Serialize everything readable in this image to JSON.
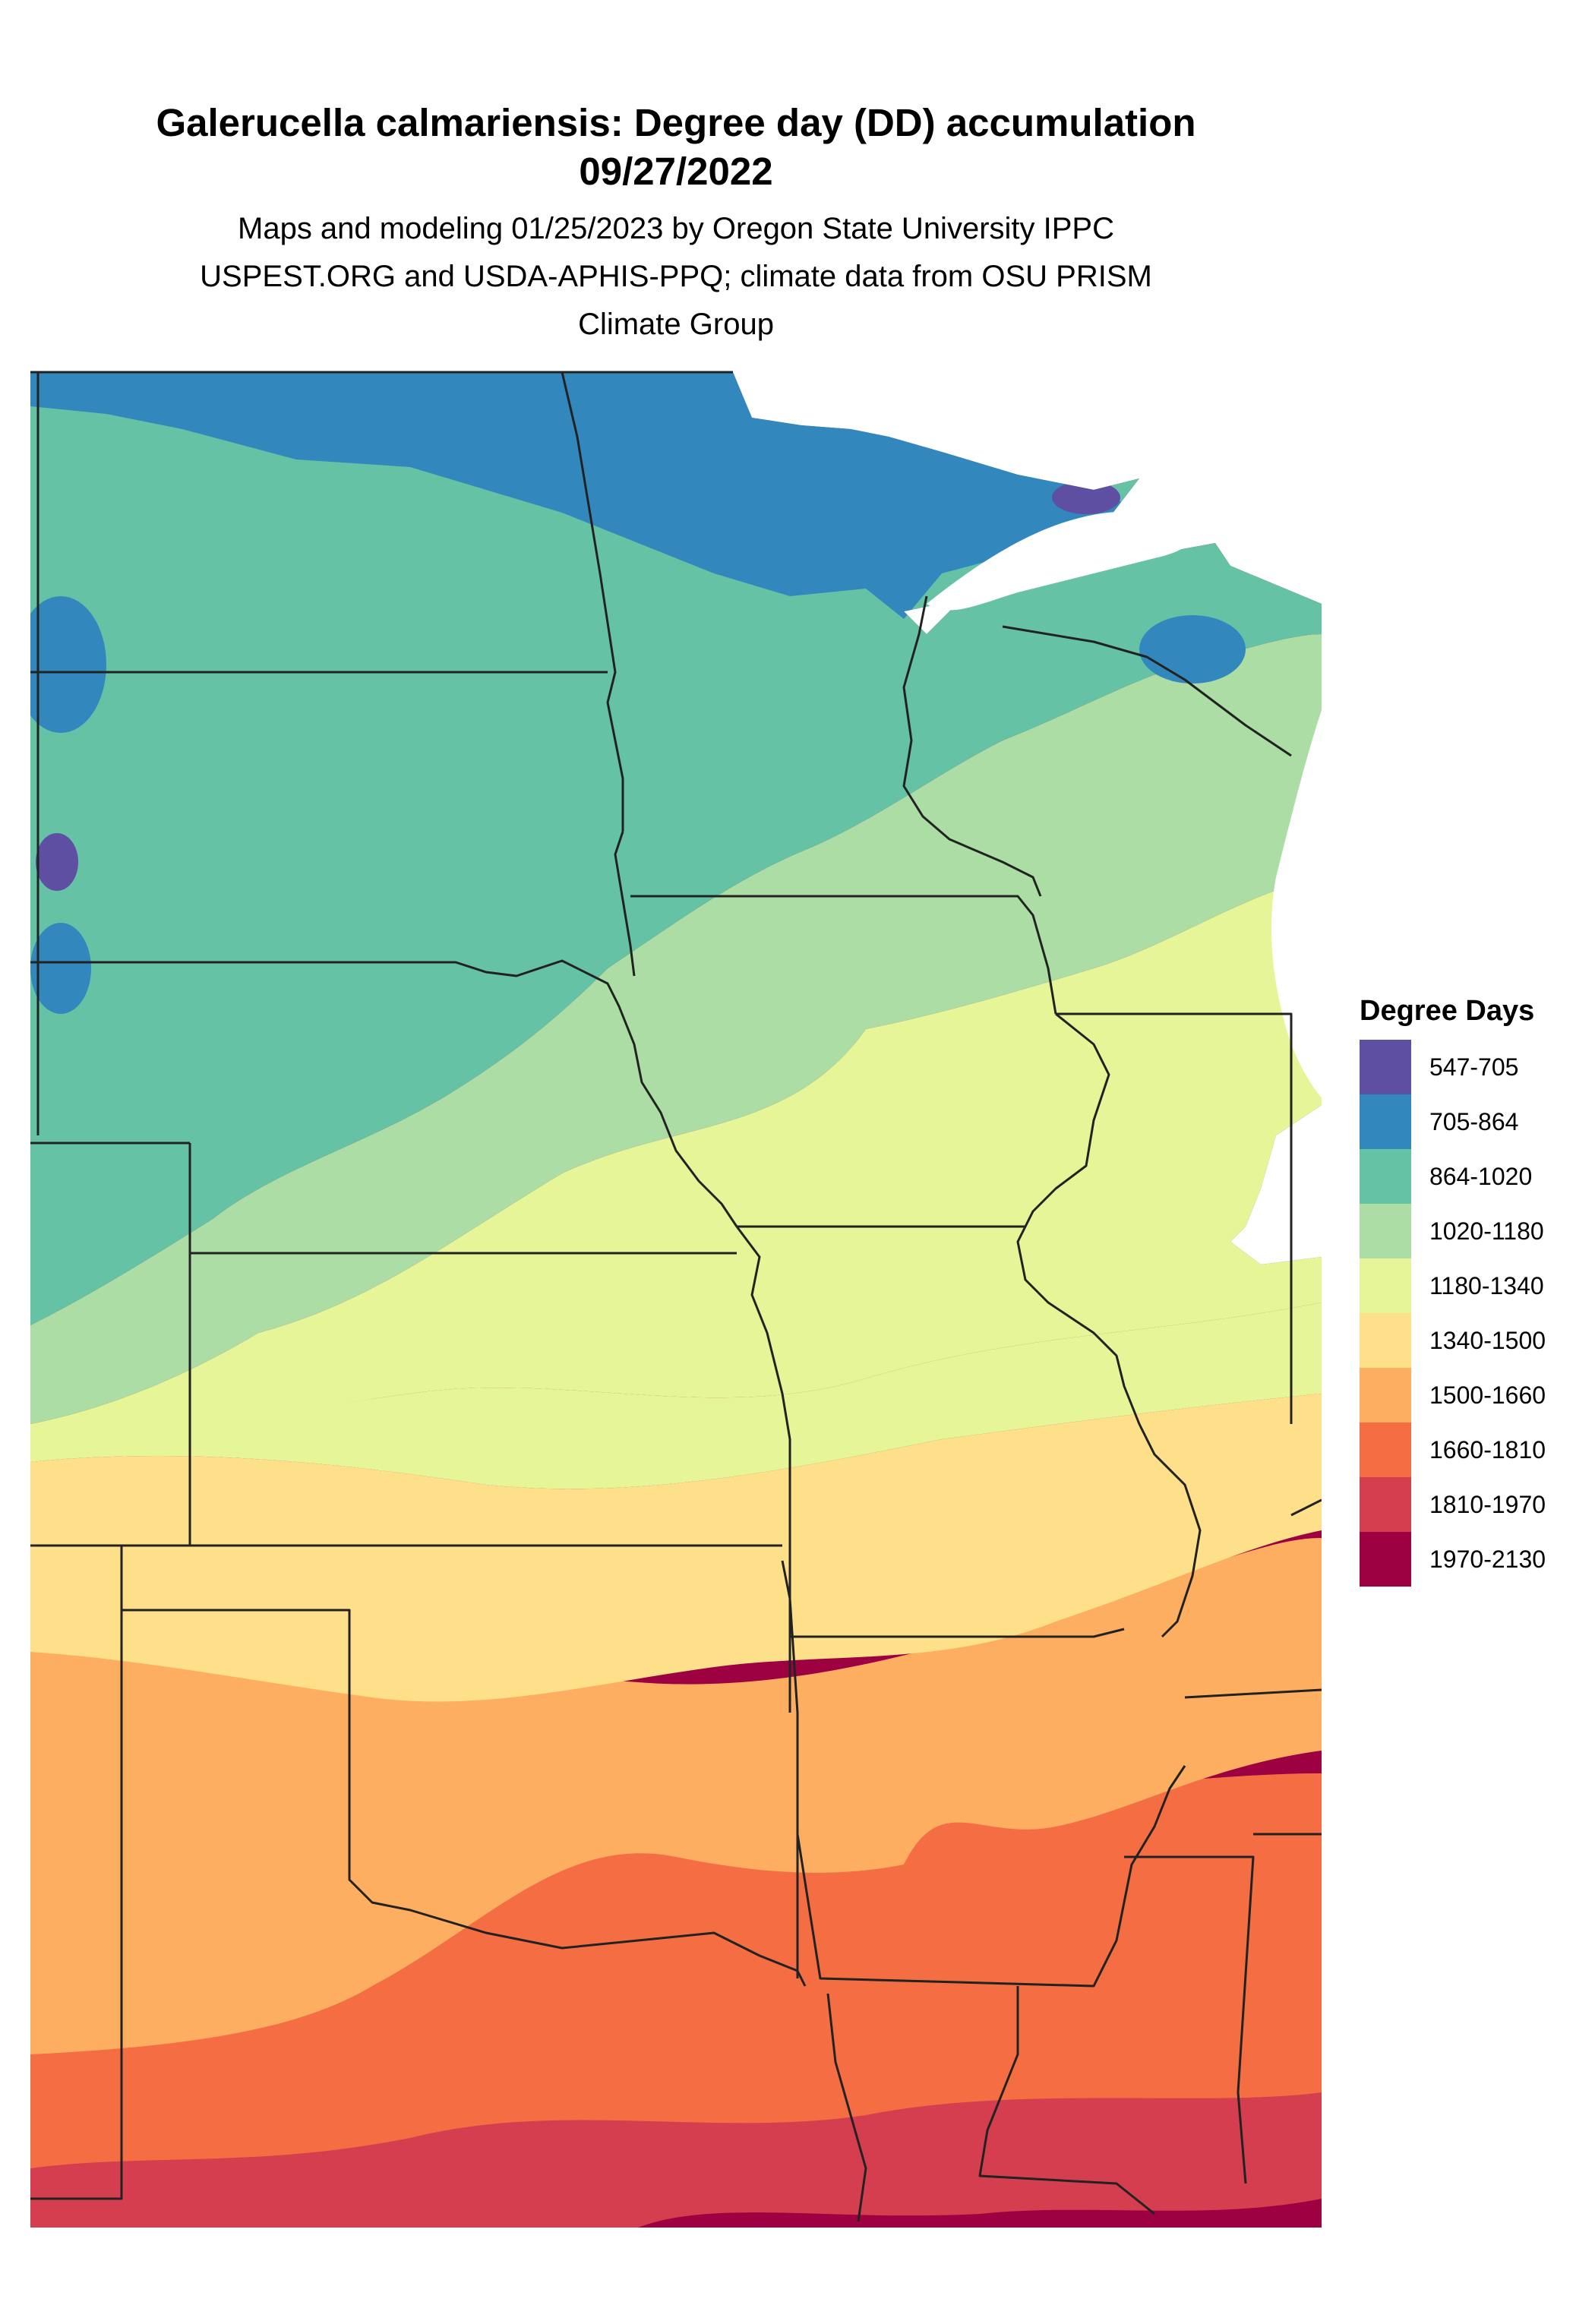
{
  "title": {
    "line1": "Galerucella calmariensis: Degree day (DD) accumulation",
    "line2": "09/27/2022"
  },
  "subtitle": {
    "line1": "Maps and modeling 01/25/2023 by Oregon State University IPPC",
    "line2": "USPEST.ORG and USDA-APHIS-PPQ; climate data from OSU PRISM",
    "line3": "Climate Group"
  },
  "legend": {
    "title": "Degree Days",
    "items": [
      {
        "label": "547-705",
        "color": "#5E4FA2"
      },
      {
        "label": "705-864",
        "color": "#3288BD"
      },
      {
        "label": "864-1020",
        "color": "#66C2A5"
      },
      {
        "label": "1020-1180",
        "color": "#ABDDA4"
      },
      {
        "label": "1180-1340",
        "color": "#E6F598"
      },
      {
        "label": "1340-1500",
        "color": "#FEE08B"
      },
      {
        "label": "1500-1660",
        "color": "#FDAE61"
      },
      {
        "label": "1660-1810",
        "color": "#F46D43"
      },
      {
        "label": "1810-1970",
        "color": "#D53E4F"
      },
      {
        "label": "1970-2130",
        "color": "#9E0142"
      }
    ]
  },
  "map": {
    "water_color": "#ffffff",
    "border_color": "#222222"
  }
}
